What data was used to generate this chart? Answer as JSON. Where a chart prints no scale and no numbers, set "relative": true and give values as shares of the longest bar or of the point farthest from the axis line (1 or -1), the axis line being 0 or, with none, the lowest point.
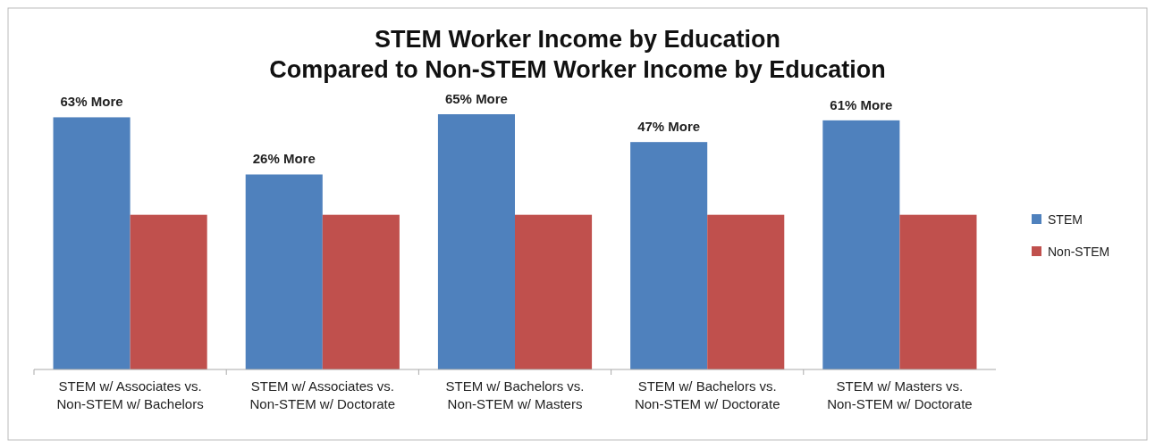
{
  "chart_data": {
    "type": "bar",
    "title": "STEM Worker Income by Education\nCompared to Non-STEM Worker Income by Education",
    "relative": true,
    "categories": [
      "STEM w/ Associates vs. Non-STEM w/ Bachelors",
      "STEM w/ Associates vs. Non-STEM w/ Doctorate",
      "STEM w/ Bachelors vs. Non-STEM w/ Masters",
      "STEM w/ Bachelors vs. Non-STEM w/ Doctorate",
      "STEM w/ Masters vs. Non-STEM w/ Doctorate"
    ],
    "series": [
      {
        "name": "STEM",
        "color": "#4f81bd",
        "values": [
          0.988,
          0.764,
          1,
          0.891,
          0.976
        ]
      },
      {
        "name": "Non-STEM",
        "color": "#c0504d",
        "values": [
          0.606,
          0.606,
          0.606,
          0.606,
          0.606
        ]
      }
    ],
    "annotations": [
      {
        "text": "63% More",
        "x": "STEM w/ Associates vs. Non-STEM w/ Bachelors",
        "y": 0.988
      },
      {
        "text": "26% More",
        "x": "STEM w/ Associates vs. Non-STEM w/ Doctorate",
        "y": 0.764
      },
      {
        "text": "65% More",
        "x": "STEM w/ Bachelors vs. Non-STEM w/ Masters",
        "y": 1
      },
      {
        "text": "47% More",
        "x": "STEM w/ Bachelors vs. Non-STEM w/ Doctorate",
        "y": 0.891
      },
      {
        "text": "61% More",
        "x": "STEM w/ Masters vs. Non-STEM w/ Doctorate",
        "y": 0.976
      }
    ],
    "legend": "right"
  }
}
